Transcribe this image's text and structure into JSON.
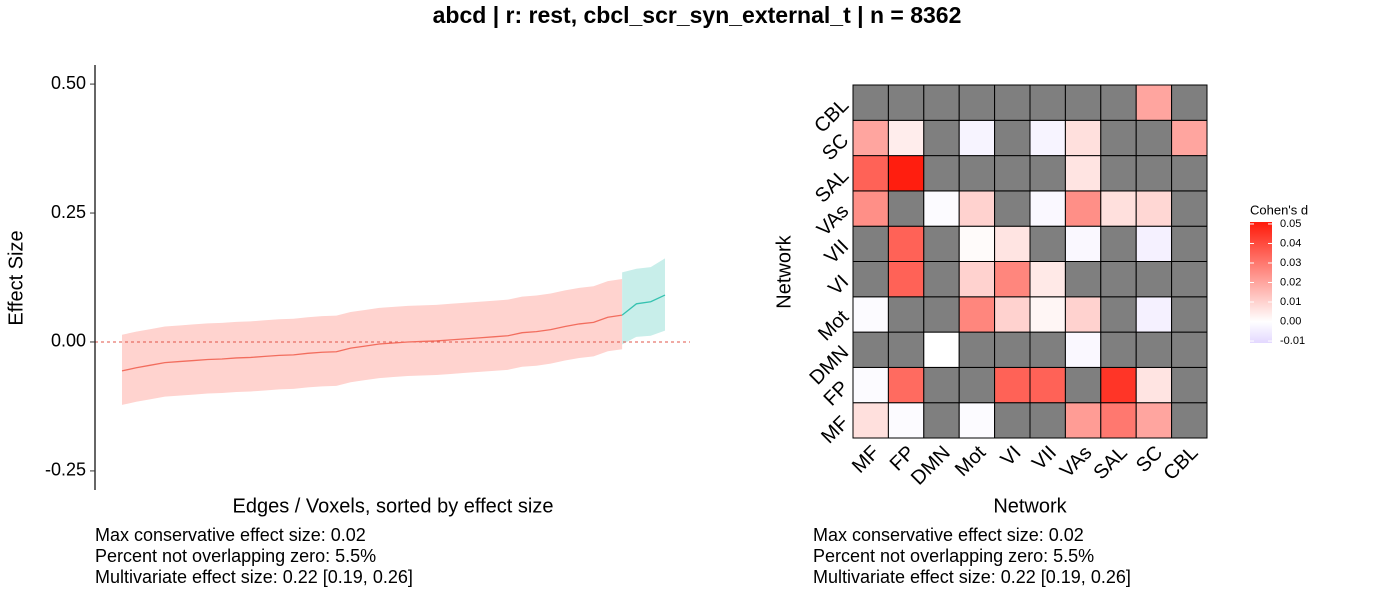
{
  "title": "abcd | r: rest, cbcl_scr_syn_external_t | n = 8362",
  "chart_data": [
    {
      "type": "line",
      "xlabel": "Edges / Voxels, sorted by effect size",
      "ylabel": "Effect Size",
      "xlim": [
        1,
        39
      ],
      "ylim": [
        -0.287,
        0.537
      ],
      "yticks": [
        {
          "value": 0.5,
          "label": "0.50"
        },
        {
          "value": 0.25,
          "label": "0.25"
        },
        {
          "value": 0,
          "label": "0.00"
        },
        {
          "value": -0.25,
          "label": "-0.25"
        }
      ],
      "hline": {
        "value": 0,
        "color": "#e0544a"
      },
      "series": [
        {
          "color": "#f26d5e",
          "band_color": "#ffd3cf",
          "x": [
            1,
            2,
            3,
            4,
            5,
            6,
            7,
            8,
            9,
            10,
            11,
            12,
            13,
            14,
            15,
            16,
            17,
            18,
            19,
            20,
            21,
            22,
            23,
            24,
            25,
            26,
            27,
            28,
            29,
            30,
            31,
            32,
            33,
            34,
            35,
            36
          ],
          "values": [
            -0.056,
            -0.05,
            -0.045,
            -0.04,
            -0.038,
            -0.036,
            -0.034,
            -0.033,
            -0.031,
            -0.03,
            -0.028,
            -0.026,
            -0.025,
            -0.022,
            -0.02,
            -0.019,
            -0.012,
            -0.008,
            -0.004,
            -0.002,
            0.0,
            0.001,
            0.002,
            0.004,
            0.006,
            0.008,
            0.01,
            0.012,
            0.018,
            0.02,
            0.024,
            0.03,
            0.035,
            0.038,
            0.048,
            0.052
          ],
          "lower": [
            -0.122,
            -0.116,
            -0.111,
            -0.106,
            -0.104,
            -0.102,
            -0.1,
            -0.099,
            -0.097,
            -0.096,
            -0.094,
            -0.092,
            -0.091,
            -0.088,
            -0.086,
            -0.085,
            -0.078,
            -0.074,
            -0.07,
            -0.068,
            -0.066,
            -0.065,
            -0.064,
            -0.062,
            -0.06,
            -0.058,
            -0.056,
            -0.054,
            -0.048,
            -0.046,
            -0.042,
            -0.036,
            -0.031,
            -0.028,
            -0.018,
            -0.014
          ],
          "upper": [
            0.014,
            0.02,
            0.025,
            0.03,
            0.032,
            0.034,
            0.036,
            0.037,
            0.039,
            0.04,
            0.042,
            0.044,
            0.045,
            0.048,
            0.05,
            0.051,
            0.058,
            0.062,
            0.066,
            0.068,
            0.07,
            0.071,
            0.072,
            0.074,
            0.076,
            0.078,
            0.08,
            0.082,
            0.088,
            0.09,
            0.094,
            0.1,
            0.105,
            0.108,
            0.118,
            0.122
          ]
        },
        {
          "color": "#35c2b0",
          "band_color": "#c8eeea",
          "x": [
            36,
            37,
            38,
            39
          ],
          "values": [
            0.052,
            0.074,
            0.078,
            0.091
          ],
          "lower": [
            -0.005,
            0.01,
            0.012,
            0.022
          ],
          "upper": [
            0.135,
            0.142,
            0.145,
            0.162
          ]
        }
      ],
      "annotations": [
        "Max conservative effect size: 0.02",
        "Percent not overlapping zero: 5.5%",
        "Multivariate effect size: 0.22 [0.19, 0.26]"
      ]
    },
    {
      "type": "heatmap",
      "xlabel": "Network",
      "ylabel": "Network",
      "x_categories": [
        "MF",
        "FP",
        "DMN",
        "Mot",
        "VI",
        "VII",
        "VAs",
        "SAL",
        "SC",
        "CBL"
      ],
      "y_categories": [
        "MF",
        "FP",
        "DMN",
        "Mot",
        "VI",
        "VII",
        "VAs",
        "SAL",
        "SC",
        "CBL"
      ],
      "values": [
        [
          0.007,
          -0.001,
          null,
          -0.001,
          null,
          null,
          0.022,
          0.03,
          0.02,
          null
        ],
        [
          -0.001,
          0.033,
          null,
          null,
          0.035,
          0.035,
          null,
          0.045,
          0.006,
          null
        ],
        [
          null,
          null,
          0.0,
          null,
          null,
          null,
          -0.002,
          null,
          null,
          null
        ],
        [
          -0.001,
          null,
          null,
          0.027,
          0.01,
          0.002,
          0.01,
          null,
          -0.004,
          null
        ],
        [
          null,
          0.035,
          null,
          0.01,
          0.027,
          0.005,
          null,
          null,
          null,
          null
        ],
        [
          null,
          0.035,
          null,
          0.001,
          0.006,
          null,
          -0.002,
          null,
          -0.004,
          null
        ],
        [
          0.025,
          null,
          -0.001,
          0.01,
          null,
          -0.002,
          0.025,
          0.007,
          0.009,
          null
        ],
        [
          0.035,
          0.05,
          null,
          null,
          null,
          null,
          0.006,
          null,
          null,
          null
        ],
        [
          0.02,
          0.004,
          null,
          -0.003,
          null,
          -0.003,
          0.007,
          null,
          null,
          0.02
        ],
        [
          null,
          null,
          null,
          null,
          null,
          null,
          null,
          null,
          0.02,
          null
        ]
      ],
      "na_color": "#7f7f7f",
      "colorbar": {
        "title": "Cohen's d",
        "lim": [
          -0.011,
          0.051
        ],
        "midpoint": 0,
        "colors": [
          "#e3d8ff",
          "#ffffff",
          "#ff1a0a"
        ],
        "ticks": [
          {
            "value": 0.05,
            "label": "0.05"
          },
          {
            "value": 0.04,
            "label": "0.04"
          },
          {
            "value": 0.03,
            "label": "0.03"
          },
          {
            "value": 0.02,
            "label": "0.02"
          },
          {
            "value": 0.01,
            "label": "0.01"
          },
          {
            "value": 0,
            "label": "0.00"
          },
          {
            "value": -0.01,
            "label": "-0.01"
          }
        ]
      },
      "annotations": [
        "Max conservative effect size: 0.02",
        "Percent not overlapping zero: 5.5%",
        "Multivariate effect size: 0.22 [0.19, 0.26]"
      ]
    }
  ]
}
